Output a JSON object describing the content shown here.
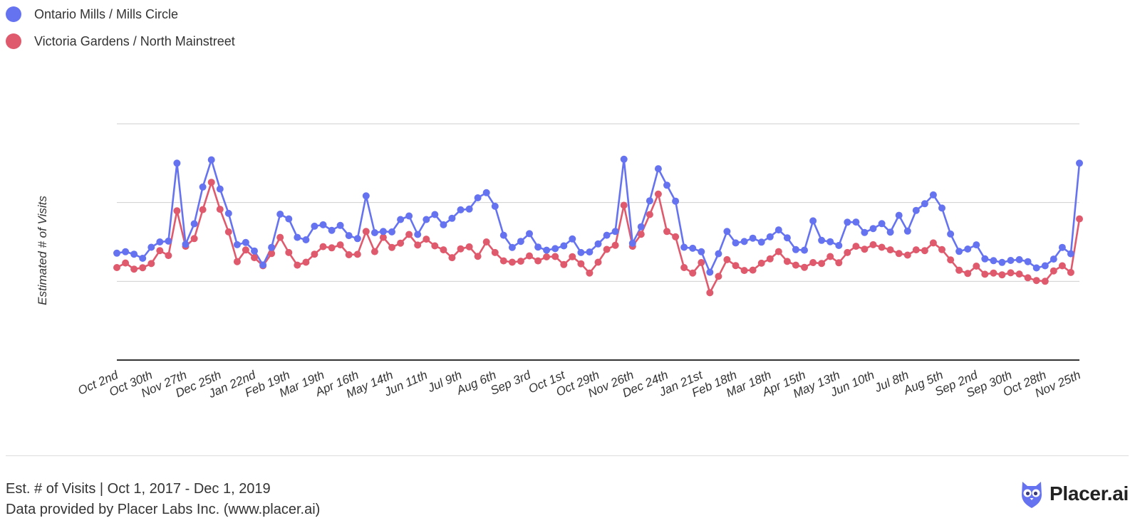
{
  "legend": {
    "items": [
      {
        "label": "Ontario Mills / Mills Circle",
        "color": "#6673f1"
      },
      {
        "label": "Victoria Gardens / North Mainstreet",
        "color": "#e05a6d"
      }
    ]
  },
  "footer": {
    "line1": "Est. # of Visits | Oct 1, 2017 - Dec 1, 2019",
    "line2": "Data provided by Placer Labs Inc. (www.placer.ai)"
  },
  "logo": {
    "text": "Placer.ai",
    "icon": "owl-logo-icon",
    "color": "#6673f1"
  },
  "chart_data": {
    "type": "line",
    "ylabel": "Estimated # of Visits",
    "grid": true,
    "ylim": [
      0,
      1.2
    ],
    "tick_labels": [
      "Oct 2nd",
      "Oct 30th",
      "Nov 27th",
      "Dec 25th",
      "Jan 22nd",
      "Feb 19th",
      "Mar 19th",
      "Apr 16th",
      "May 14th",
      "Jun 11th",
      "Jul 9th",
      "Aug 6th",
      "Sep 3rd",
      "Oct 1st",
      "Oct 29th",
      "Nov 26th",
      "Dec 24th",
      "Jan 21st",
      "Feb 18th",
      "Mar 18th",
      "Apr 15th",
      "May 13th",
      "Jun 10th",
      "Jul 8th",
      "Aug 5th",
      "Sep 2nd",
      "Sep 30th",
      "Oct 28th",
      "Nov 25th"
    ],
    "points_per_tick": 4,
    "series": [
      {
        "name": "Ontario Mills / Mills Circle",
        "color": "#6673f1",
        "values": [
          0.543,
          0.55,
          0.538,
          0.517,
          0.573,
          0.6,
          0.604,
          1.0,
          0.588,
          0.692,
          0.879,
          1.017,
          0.869,
          0.745,
          0.586,
          0.597,
          0.554,
          0.483,
          0.572,
          0.741,
          0.717,
          0.623,
          0.611,
          0.68,
          0.687,
          0.659,
          0.684,
          0.632,
          0.617,
          0.834,
          0.647,
          0.653,
          0.651,
          0.714,
          0.732,
          0.638,
          0.714,
          0.739,
          0.687,
          0.72,
          0.763,
          0.767,
          0.824,
          0.85,
          0.781,
          0.634,
          0.572,
          0.603,
          0.642,
          0.574,
          0.558,
          0.566,
          0.58,
          0.615,
          0.546,
          0.549,
          0.59,
          0.634,
          0.653,
          1.02,
          0.593,
          0.677,
          0.809,
          0.972,
          0.888,
          0.807,
          0.573,
          0.568,
          0.55,
          0.446,
          0.54,
          0.653,
          0.595,
          0.602,
          0.619,
          0.599,
          0.626,
          0.661,
          0.621,
          0.561,
          0.558,
          0.707,
          0.608,
          0.601,
          0.582,
          0.7,
          0.701,
          0.648,
          0.668,
          0.693,
          0.65,
          0.735,
          0.655,
          0.76,
          0.794,
          0.839,
          0.772,
          0.64,
          0.552,
          0.564,
          0.585,
          0.514,
          0.505,
          0.496,
          0.506,
          0.51,
          0.5,
          0.468,
          0.479,
          0.513,
          0.572,
          0.54,
          1.0
        ]
      },
      {
        "name": "Victoria Gardens / North Mainstreet",
        "color": "#e05a6d",
        "values": [
          0.47,
          0.493,
          0.462,
          0.469,
          0.49,
          0.556,
          0.531,
          0.758,
          0.578,
          0.617,
          0.764,
          0.903,
          0.766,
          0.651,
          0.5,
          0.559,
          0.52,
          0.479,
          0.541,
          0.623,
          0.546,
          0.482,
          0.497,
          0.538,
          0.576,
          0.57,
          0.585,
          0.535,
          0.537,
          0.653,
          0.551,
          0.623,
          0.572,
          0.594,
          0.638,
          0.584,
          0.614,
          0.58,
          0.56,
          0.52,
          0.565,
          0.575,
          0.527,
          0.6,
          0.546,
          0.504,
          0.497,
          0.502,
          0.529,
          0.504,
          0.524,
          0.526,
          0.485,
          0.525,
          0.489,
          0.442,
          0.497,
          0.562,
          0.583,
          0.786,
          0.578,
          0.639,
          0.739,
          0.843,
          0.653,
          0.626,
          0.47,
          0.442,
          0.495,
          0.342,
          0.425,
          0.51,
          0.48,
          0.455,
          0.457,
          0.492,
          0.514,
          0.551,
          0.501,
          0.482,
          0.471,
          0.495,
          0.491,
          0.526,
          0.494,
          0.546,
          0.578,
          0.563,
          0.586,
          0.573,
          0.56,
          0.541,
          0.533,
          0.56,
          0.556,
          0.595,
          0.561,
          0.509,
          0.456,
          0.44,
          0.477,
          0.436,
          0.442,
          0.433,
          0.443,
          0.437,
          0.418,
          0.404,
          0.4,
          0.453,
          0.479,
          0.445,
          0.717
        ]
      }
    ]
  }
}
